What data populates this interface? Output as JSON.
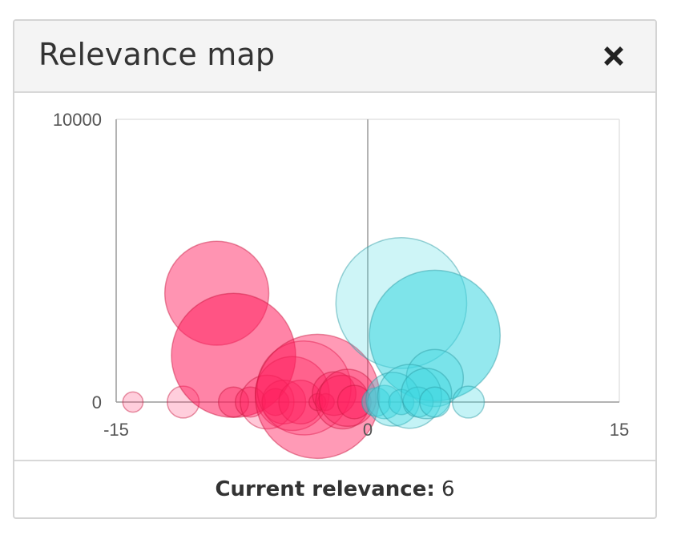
{
  "panel": {
    "title": "Relevance map",
    "close_icon": "close-icon"
  },
  "footer": {
    "label": "Current relevance:",
    "value": "6"
  },
  "colors": {
    "negative_fill": "#ff1f5e",
    "negative_stroke": "#c8163f",
    "positive_fill": "#3dd6e0",
    "positive_stroke": "#2a9aa2",
    "axis": "#9a9a9a",
    "grid": "#e3e3e3",
    "tick_text": "#555555"
  },
  "chart_data": {
    "type": "scatter",
    "title": "",
    "xlabel": "",
    "ylabel": "",
    "xlim": [
      -15,
      15
    ],
    "ylim": [
      0,
      10000
    ],
    "x_ticks": [
      "-15",
      "0",
      "15"
    ],
    "y_ticks": [
      "0",
      "10000"
    ],
    "grid": false,
    "series": [
      {
        "polarity": "negative",
        "points": [
          {
            "x": -14.0,
            "y": 0,
            "r": 0.6,
            "o": 0.22
          },
          {
            "x": -11.0,
            "y": 0,
            "r": 0.95,
            "o": 0.22
          },
          {
            "x": -9.0,
            "y": 3850,
            "r": 3.1,
            "o": 0.48
          },
          {
            "x": -8.0,
            "y": 1650,
            "r": 3.7,
            "o": 0.55
          },
          {
            "x": -8.0,
            "y": 0,
            "r": 0.9,
            "o": 0.35
          },
          {
            "x": -7.0,
            "y": 0,
            "r": 0.9,
            "o": 0.35
          },
          {
            "x": -6.0,
            "y": 0,
            "r": 1.6,
            "o": 0.25
          },
          {
            "x": -5.5,
            "y": 0,
            "r": 0.8,
            "o": 0.4
          },
          {
            "x": -5.0,
            "y": 0,
            "r": 1.3,
            "o": 0.3
          },
          {
            "x": -4.5,
            "y": 300,
            "r": 2.2,
            "o": 0.3
          },
          {
            "x": -4.0,
            "y": 0,
            "r": 1.3,
            "o": 0.35
          },
          {
            "x": -3.8,
            "y": 500,
            "r": 2.8,
            "o": 0.22
          },
          {
            "x": -3.0,
            "y": 200,
            "r": 3.7,
            "o": 0.45
          },
          {
            "x": -3.0,
            "y": 0,
            "r": 0.5,
            "o": 0.4
          },
          {
            "x": -2.5,
            "y": 0,
            "r": 0.5,
            "o": 0.4
          },
          {
            "x": -2.0,
            "y": 300,
            "r": 1.3,
            "o": 0.4
          },
          {
            "x": -1.5,
            "y": 0,
            "r": 1.6,
            "o": 0.35
          },
          {
            "x": -1.2,
            "y": 150,
            "r": 1.7,
            "o": 0.35
          },
          {
            "x": -0.8,
            "y": 0,
            "r": 1.0,
            "o": 0.4
          }
        ]
      },
      {
        "polarity": "positive",
        "points": [
          {
            "x": 2.0,
            "y": 3500,
            "r": 3.9,
            "o": 0.25
          },
          {
            "x": 4.0,
            "y": 2350,
            "r": 3.9,
            "o": 0.55
          },
          {
            "x": 4.0,
            "y": 850,
            "r": 1.7,
            "o": 0.3
          },
          {
            "x": 0.5,
            "y": 0,
            "r": 0.85,
            "o": 0.45
          },
          {
            "x": 1.0,
            "y": 0,
            "r": 1.0,
            "o": 0.45
          },
          {
            "x": 1.5,
            "y": 100,
            "r": 1.6,
            "o": 0.35
          },
          {
            "x": 2.0,
            "y": 0,
            "r": 0.75,
            "o": 0.5
          },
          {
            "x": 2.5,
            "y": 200,
            "r": 1.9,
            "o": 0.3
          },
          {
            "x": 3.0,
            "y": 0,
            "r": 0.9,
            "o": 0.4
          },
          {
            "x": 3.5,
            "y": 300,
            "r": 1.5,
            "o": 0.35
          },
          {
            "x": 4.0,
            "y": 0,
            "r": 0.9,
            "o": 0.4
          },
          {
            "x": 6.0,
            "y": 0,
            "r": 0.95,
            "o": 0.3
          }
        ]
      }
    ]
  }
}
